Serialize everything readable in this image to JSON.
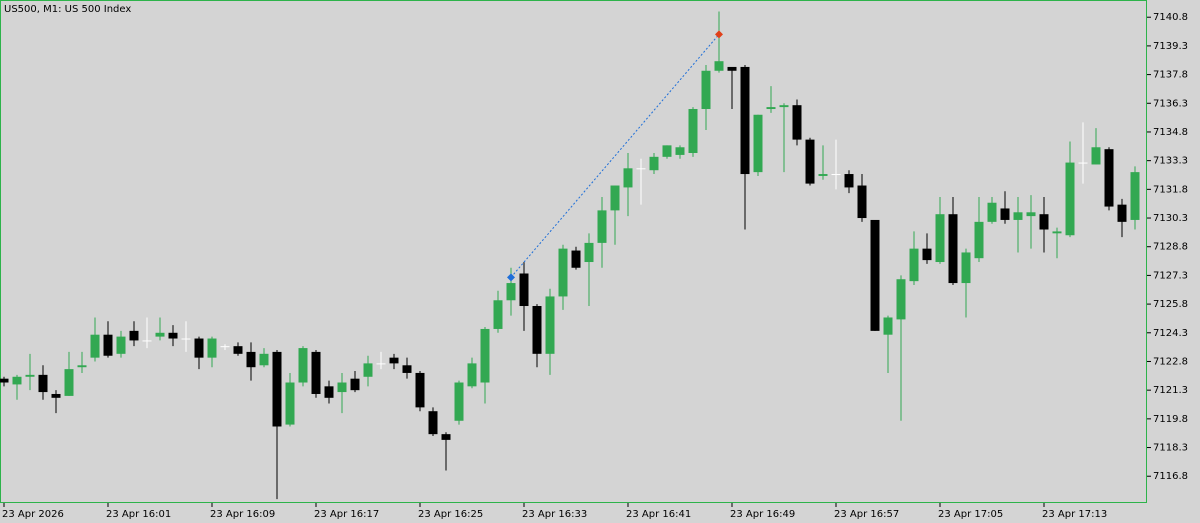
{
  "chart_data": {
    "type": "candlestick",
    "title": "US500, M1:  US 500 Index",
    "categories": [
      "23 Apr 2026",
      null,
      null,
      null,
      null,
      null,
      null,
      null,
      "23 Apr 16:01",
      null,
      null,
      null,
      null,
      null,
      null,
      null,
      "23 Apr 16:09",
      null,
      null,
      null,
      null,
      null,
      null,
      null,
      "23 Apr 16:17",
      null,
      null,
      null,
      null,
      null,
      null,
      null,
      "23 Apr 16:25",
      null,
      null,
      null,
      null,
      null,
      null,
      null,
      "23 Apr 16:33",
      null,
      null,
      null,
      null,
      null,
      null,
      null,
      "23 Apr 16:41",
      null,
      null,
      null,
      null,
      null,
      null,
      null,
      "23 Apr 16:49",
      null,
      null,
      null,
      null,
      null,
      null,
      null,
      "23 Apr 16:57",
      null,
      null,
      null,
      null,
      null,
      null,
      null,
      "23 Apr 17:05",
      null,
      null,
      null,
      null,
      null,
      null,
      null,
      "23 Apr 17:13",
      null,
      null,
      null,
      null,
      null,
      null,
      null
    ],
    "open": [
      7121.9,
      7121.6,
      7122.0,
      7122.1,
      7121.1,
      7121.0,
      7122.5,
      7123.0,
      7124.2,
      7123.2,
      7124.4,
      7123.9,
      7124.1,
      7124.3,
      7124.0,
      7124.0,
      7123.0,
      7123.6,
      7123.6,
      7123.3,
      7122.6,
      7123.3,
      7119.5,
      7121.7,
      7123.3,
      7121.5,
      7121.2,
      7121.9,
      7122.0,
      7122.7,
      7123.0,
      7122.6,
      7122.2,
      7120.2,
      7119.0,
      7119.7,
      7121.5,
      7121.7,
      7124.5,
      7126.0,
      7127.4,
      7125.7,
      7123.2,
      7126.2,
      7128.6,
      7128.0,
      7129.0,
      7130.7,
      7131.9,
      7132.9,
      7132.8,
      7133.5,
      7133.6,
      7133.7,
      7136.0,
      7138.0,
      7138.2,
      7138.2,
      7132.7,
      7136.0,
      7136.1,
      7136.2,
      7134.4,
      7132.5,
      7132.6,
      7132.6,
      7132.0,
      7130.2,
      7124.2,
      7125.0,
      7127.0,
      7128.7,
      7128.0,
      7130.5,
      7126.9,
      7128.2,
      7130.1,
      7130.8,
      7130.2,
      7130.4,
      7130.5,
      7129.5,
      7129.4,
      7133.2,
      7133.1,
      7133.9,
      7131.0,
      7130.2
    ],
    "high": [
      7122.0,
      7122.1,
      7123.2,
      7122.6,
      7121.3,
      7123.3,
      7123.3,
      7125.1,
      7124.9,
      7124.4,
      7124.9,
      7125.1,
      7125.1,
      7124.7,
      7124.9,
      7124.1,
      7124.1,
      7123.7,
      7123.8,
      7123.8,
      7123.5,
      7123.4,
      7122.2,
      7123.6,
      7123.4,
      7121.8,
      7122.2,
      7122.3,
      7123.1,
      7123.3,
      7123.2,
      7123.0,
      7122.3,
      7120.4,
      7119.1,
      7121.8,
      7123.0,
      7124.6,
      7126.5,
      7127.7,
      7128.0,
      7125.8,
      7126.6,
      7128.9,
      7128.8,
      7129.5,
      7131.4,
      7132.0,
      7133.7,
      7133.4,
      7133.7,
      7134.1,
      7134.1,
      7136.1,
      7138.3,
      7141.1,
      7138.2,
      7138.3,
      7135.7,
      7137.2,
      7136.3,
      7136.5,
      7134.5,
      7134.1,
      7134.4,
      7132.8,
      7132.6,
      7130.2,
      7125.2,
      7127.3,
      7129.6,
      7129.5,
      7131.4,
      7131.4,
      7128.7,
      7131.4,
      7131.4,
      7131.7,
      7131.4,
      7131.5,
      7131.4,
      7129.8,
      7134.3,
      7135.3,
      7135.0,
      7134.0,
      7131.3,
      7133.0
    ],
    "low": [
      7121.5,
      7120.8,
      7121.3,
      7120.8,
      7120.1,
      7121.0,
      7122.2,
      7122.8,
      7123.0,
      7123.0,
      7123.6,
      7123.5,
      7123.9,
      7123.6,
      7123.3,
      7122.4,
      7122.5,
      7123.4,
      7123.1,
      7121.8,
      7122.5,
      7115.6,
      7119.4,
      7121.5,
      7120.9,
      7120.6,
      7120.1,
      7121.2,
      7121.5,
      7122.4,
      7122.4,
      7121.9,
      7120.2,
      7118.9,
      7117.1,
      7119.5,
      7121.4,
      7120.6,
      7124.3,
      7125.2,
      7124.4,
      7122.5,
      7122.1,
      7125.5,
      7127.6,
      7125.7,
      7127.7,
      7128.9,
      7130.4,
      7131.0,
      7132.6,
      7133.4,
      7133.4,
      7133.5,
      7134.9,
      7137.9,
      7136.0,
      7129.7,
      7132.5,
      7135.8,
      7132.7,
      7134.1,
      7132.0,
      7132.3,
      7131.8,
      7131.6,
      7130.1,
      7124.4,
      7122.2,
      7119.7,
      7126.8,
      7127.9,
      7127.9,
      7126.8,
      7125.1,
      7128.0,
      7130.0,
      7130.0,
      7128.5,
      7128.7,
      7128.5,
      7128.2,
      7129.3,
      7132.1,
      7133.1,
      7130.7,
      7129.3,
      7129.7
    ],
    "close": [
      7121.7,
      7122.0,
      7122.1,
      7121.2,
      7120.9,
      7122.4,
      7122.6,
      7124.2,
      7123.1,
      7124.1,
      7123.9,
      7123.9,
      7124.3,
      7124.0,
      7124.0,
      7123.0,
      7124.0,
      7123.6,
      7123.2,
      7122.5,
      7123.2,
      7119.4,
      7121.7,
      7123.5,
      7121.1,
      7120.9,
      7121.7,
      7121.3,
      7122.7,
      7122.7,
      7122.7,
      7122.2,
      7120.4,
      7119.0,
      7118.7,
      7121.7,
      7122.7,
      7124.5,
      7126.0,
      7126.9,
      7125.7,
      7123.2,
      7126.2,
      7128.7,
      7127.7,
      7129.0,
      7130.7,
      7132.0,
      7132.9,
      7132.9,
      7133.5,
      7134.1,
      7134.0,
      7136.0,
      7138.0,
      7138.5,
      7138.0,
      7132.6,
      7135.7,
      7136.1,
      7136.2,
      7134.4,
      7132.1,
      7132.6,
      7132.6,
      7131.9,
      7130.3,
      7124.4,
      7125.1,
      7127.1,
      7128.7,
      7128.1,
      7130.5,
      7126.9,
      7128.5,
      7130.1,
      7131.1,
      7130.2,
      7130.6,
      7130.6,
      7129.7,
      7129.6,
      7133.2,
      7133.2,
      7134.0,
      7130.9,
      7130.1,
      7132.7
    ],
    "up_color": "#32a852",
    "down_color": "#000000",
    "doji_color": "#ffffff",
    "frame_color": "#2db34a",
    "trade": {
      "entry_index": 39,
      "entry_price": 7127.2,
      "entry_color": "#1e6fd9",
      "exit_index": 55,
      "exit_price": 7139.9,
      "exit_color": "#e0401a"
    },
    "ylim": [
      7115.4,
      7141.7
    ],
    "yticks": [
      7116.8,
      7118.3,
      7119.8,
      7121.3,
      7122.8,
      7124.3,
      7125.8,
      7127.3,
      7128.8,
      7130.3,
      7131.8,
      7133.3,
      7134.8,
      7136.3,
      7137.8,
      7139.3,
      7140.8
    ]
  }
}
